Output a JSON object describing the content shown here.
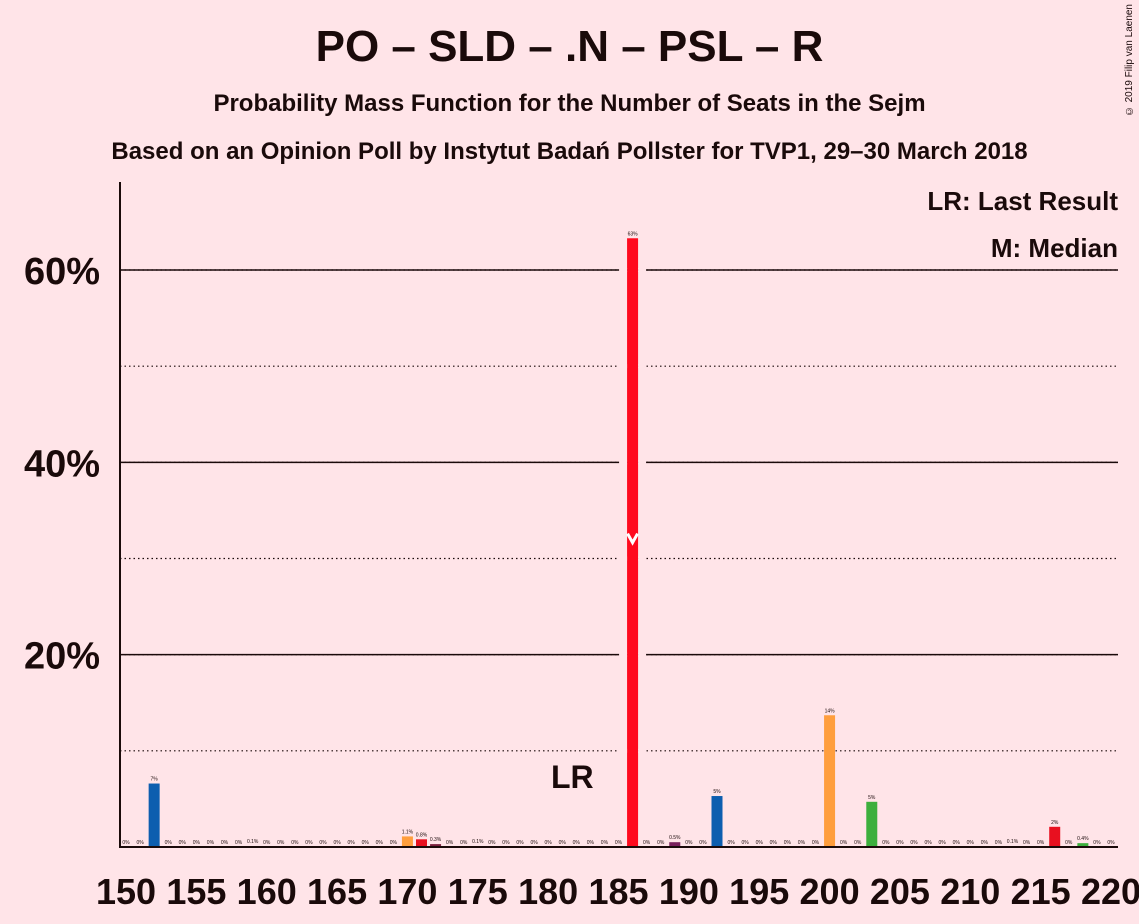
{
  "title": "PO – SLD – .N – PSL – R",
  "subtitle": "Probability Mass Function for the Number of Seats in the Sejm",
  "subtitle2": "Based on an Opinion Poll by Instytut Badań Pollster for TVP1, 29–30 March 2018",
  "copyright": "© 2019 Filip van Laenen",
  "legend": {
    "last_result": "LR: Last Result",
    "median": "M: Median"
  },
  "markers": {
    "last_result_label": "LR",
    "last_result_seat": 182,
    "median_label": "M",
    "median_seat": 186
  },
  "chart_data": {
    "type": "bar",
    "xlim": [
      150,
      220
    ],
    "ylim": [
      0,
      69
    ],
    "x_ticks": [
      150,
      155,
      160,
      165,
      170,
      175,
      180,
      185,
      190,
      195,
      200,
      205,
      210,
      215,
      220
    ],
    "y_ticks": [
      {
        "value": 20,
        "label": "20%"
      },
      {
        "value": 40,
        "label": "40%"
      },
      {
        "value": 60,
        "label": "60%"
      }
    ],
    "minor_gridlines": [
      10,
      30,
      50
    ],
    "bars": [
      {
        "x": 150,
        "value": 0,
        "label": "0%",
        "color": "#1A1A1A"
      },
      {
        "x": 151,
        "value": 0,
        "label": "0%",
        "color": "#1A1A1A"
      },
      {
        "x": 152,
        "value": 6.6,
        "label": "7%",
        "color": "#0D5EAF"
      },
      {
        "x": 153,
        "value": 0,
        "label": "0%",
        "color": "#1A1A1A"
      },
      {
        "x": 154,
        "value": 0,
        "label": "0%",
        "color": "#1A1A1A"
      },
      {
        "x": 155,
        "value": 0,
        "label": "0%",
        "color": "#1A1A1A"
      },
      {
        "x": 156,
        "value": 0,
        "label": "0%",
        "color": "#1A1A1A"
      },
      {
        "x": 157,
        "value": 0,
        "label": "0%",
        "color": "#1A1A1A"
      },
      {
        "x": 158,
        "value": 0,
        "label": "0%",
        "color": "#1A1A1A"
      },
      {
        "x": 159,
        "value": 0.1,
        "label": "0.1%",
        "color": "#1A1A1A"
      },
      {
        "x": 160,
        "value": 0,
        "label": "0%",
        "color": "#1A1A1A"
      },
      {
        "x": 161,
        "value": 0,
        "label": "0%",
        "color": "#1A1A1A"
      },
      {
        "x": 162,
        "value": 0,
        "label": "0%",
        "color": "#1A1A1A"
      },
      {
        "x": 163,
        "value": 0,
        "label": "0%",
        "color": "#1A1A1A"
      },
      {
        "x": 164,
        "value": 0,
        "label": "0%",
        "color": "#1A1A1A"
      },
      {
        "x": 165,
        "value": 0,
        "label": "0%",
        "color": "#1A1A1A"
      },
      {
        "x": 166,
        "value": 0,
        "label": "0%",
        "color": "#1A1A1A"
      },
      {
        "x": 167,
        "value": 0,
        "label": "0%",
        "color": "#1A1A1A"
      },
      {
        "x": 168,
        "value": 0,
        "label": "0%",
        "color": "#1A1A1A"
      },
      {
        "x": 169,
        "value": 0,
        "label": "0%",
        "color": "#1A1A1A"
      },
      {
        "x": 170,
        "value": 1.1,
        "label": "1.1%",
        "color": "#FF9E3D"
      },
      {
        "x": 171,
        "value": 0.8,
        "label": "0.8%",
        "color": "#E8101F"
      },
      {
        "x": 172,
        "value": 0.3,
        "label": "0.3%",
        "color": "#7A1F3D"
      },
      {
        "x": 173,
        "value": 0,
        "label": "0%",
        "color": "#1A1A1A"
      },
      {
        "x": 174,
        "value": 0,
        "label": "0%",
        "color": "#1A1A1A"
      },
      {
        "x": 175,
        "value": 0.1,
        "label": "0.1%",
        "color": "#1A1A1A"
      },
      {
        "x": 176,
        "value": 0,
        "label": "0%",
        "color": "#1A1A1A"
      },
      {
        "x": 177,
        "value": 0,
        "label": "0%",
        "color": "#1A1A1A"
      },
      {
        "x": 178,
        "value": 0,
        "label": "0%",
        "color": "#1A1A1A"
      },
      {
        "x": 179,
        "value": 0,
        "label": "0%",
        "color": "#1A1A1A"
      },
      {
        "x": 180,
        "value": 0,
        "label": "0%",
        "color": "#1A1A1A"
      },
      {
        "x": 181,
        "value": 0,
        "label": "0%",
        "color": "#1A1A1A"
      },
      {
        "x": 182,
        "value": 0,
        "label": "0%",
        "color": "#1A1A1A"
      },
      {
        "x": 183,
        "value": 0,
        "label": "0%",
        "color": "#1A1A1A"
      },
      {
        "x": 184,
        "value": 0,
        "label": "0%",
        "color": "#1A1A1A"
      },
      {
        "x": 185,
        "value": 0,
        "label": "0%",
        "color": "#1A1A1A"
      },
      {
        "x": 186,
        "value": 63.3,
        "label": "63%",
        "color": "#FF0A1E"
      },
      {
        "x": 187,
        "value": 0,
        "label": "0%",
        "color": "#1A1A1A"
      },
      {
        "x": 188,
        "value": 0,
        "label": "0%",
        "color": "#1A1A1A"
      },
      {
        "x": 189,
        "value": 0.5,
        "label": "0.5%",
        "color": "#7A1F5C"
      },
      {
        "x": 190,
        "value": 0,
        "label": "0%",
        "color": "#1A1A1A"
      },
      {
        "x": 191,
        "value": 0,
        "label": "0%",
        "color": "#1A1A1A"
      },
      {
        "x": 192,
        "value": 5.3,
        "label": "5%",
        "color": "#0D5EAF"
      },
      {
        "x": 193,
        "value": 0,
        "label": "0%",
        "color": "#1A1A1A"
      },
      {
        "x": 194,
        "value": 0,
        "label": "0%",
        "color": "#1A1A1A"
      },
      {
        "x": 195,
        "value": 0,
        "label": "0%",
        "color": "#1A1A1A"
      },
      {
        "x": 196,
        "value": 0,
        "label": "0%",
        "color": "#1A1A1A"
      },
      {
        "x": 197,
        "value": 0,
        "label": "0%",
        "color": "#1A1A1A"
      },
      {
        "x": 198,
        "value": 0,
        "label": "0%",
        "color": "#1A1A1A"
      },
      {
        "x": 199,
        "value": 0,
        "label": "0%",
        "color": "#1A1A1A"
      },
      {
        "x": 200,
        "value": 13.7,
        "label": "14%",
        "color": "#FF9E3D"
      },
      {
        "x": 201,
        "value": 0,
        "label": "0%",
        "color": "#1A1A1A"
      },
      {
        "x": 202,
        "value": 0,
        "label": "0%",
        "color": "#1A1A1A"
      },
      {
        "x": 203,
        "value": 4.7,
        "label": "5%",
        "color": "#3DAF3D"
      },
      {
        "x": 204,
        "value": 0,
        "label": "0%",
        "color": "#1A1A1A"
      },
      {
        "x": 205,
        "value": 0,
        "label": "0%",
        "color": "#1A1A1A"
      },
      {
        "x": 206,
        "value": 0,
        "label": "0%",
        "color": "#1A1A1A"
      },
      {
        "x": 207,
        "value": 0,
        "label": "0%",
        "color": "#1A1A1A"
      },
      {
        "x": 208,
        "value": 0,
        "label": "0%",
        "color": "#1A1A1A"
      },
      {
        "x": 209,
        "value": 0,
        "label": "0%",
        "color": "#1A1A1A"
      },
      {
        "x": 210,
        "value": 0,
        "label": "0%",
        "color": "#1A1A1A"
      },
      {
        "x": 211,
        "value": 0,
        "label": "0%",
        "color": "#1A1A1A"
      },
      {
        "x": 212,
        "value": 0,
        "label": "0%",
        "color": "#1A1A1A"
      },
      {
        "x": 213,
        "value": 0.1,
        "label": "0.1%",
        "color": "#1A1A1A"
      },
      {
        "x": 214,
        "value": 0,
        "label": "0%",
        "color": "#1A1A1A"
      },
      {
        "x": 215,
        "value": 0,
        "label": "0%",
        "color": "#1A1A1A"
      },
      {
        "x": 216,
        "value": 2.1,
        "label": "2%",
        "color": "#E8101F"
      },
      {
        "x": 217,
        "value": 0,
        "label": "0%",
        "color": "#1A1A1A"
      },
      {
        "x": 218,
        "value": 0.4,
        "label": "0.4%",
        "color": "#3DAF3D"
      },
      {
        "x": 219,
        "value": 0,
        "label": "0%",
        "color": "#1A1A1A"
      },
      {
        "x": 220,
        "value": 0,
        "label": "0%",
        "color": "#1A1A1A"
      }
    ]
  }
}
